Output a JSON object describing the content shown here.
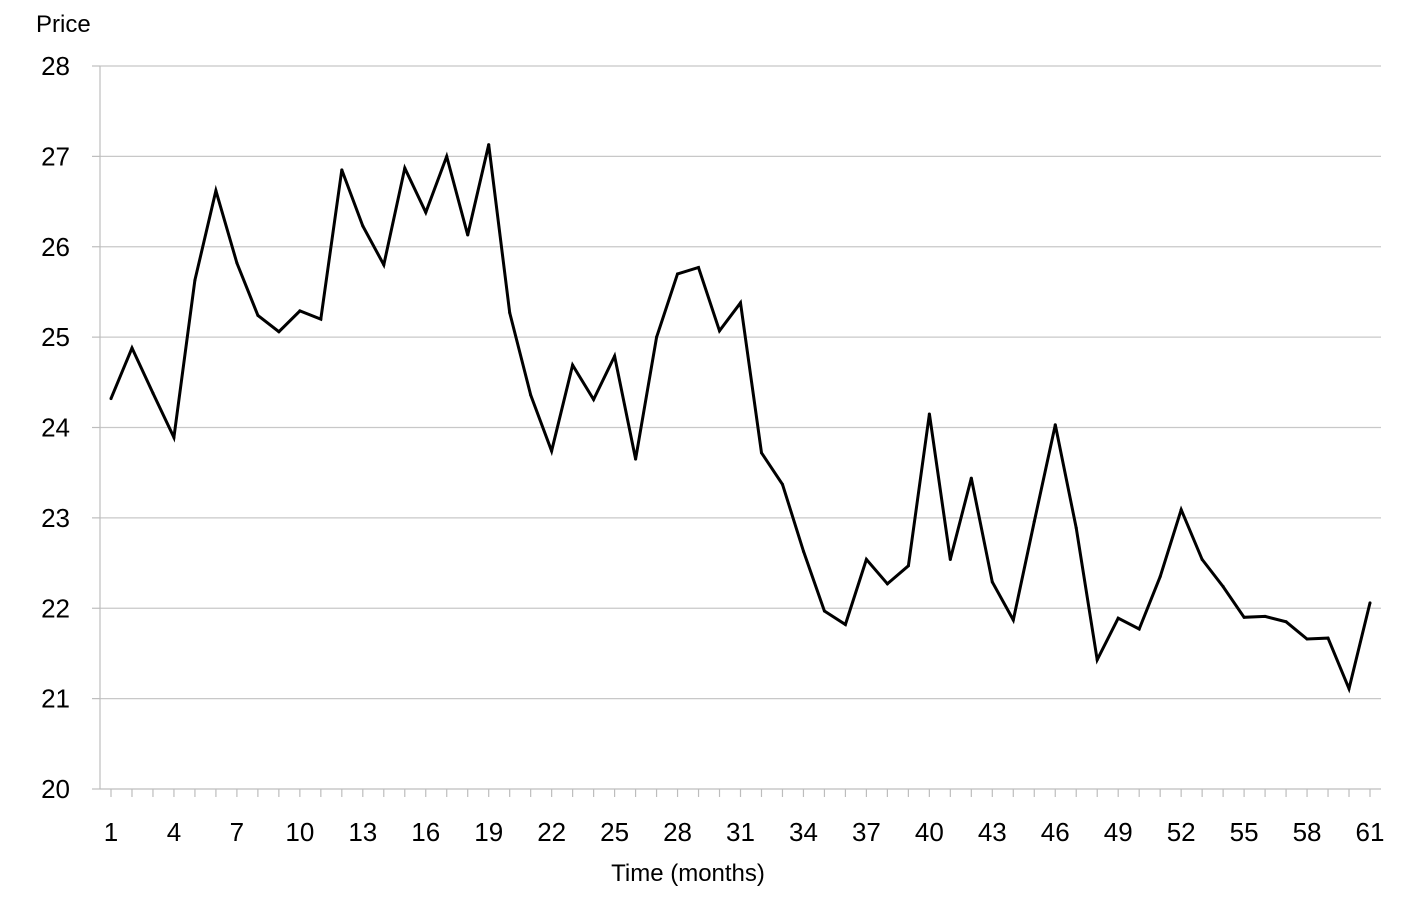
{
  "chart_data": {
    "type": "line",
    "title": "",
    "xlabel": "Time (months)",
    "ylabel": "Price",
    "xlim": [
      1,
      61
    ],
    "ylim": [
      20,
      28
    ],
    "y_ticks": [
      20,
      21,
      22,
      23,
      24,
      25,
      26,
      27,
      28
    ],
    "x_ticks": [
      1,
      4,
      7,
      10,
      13,
      16,
      19,
      22,
      25,
      28,
      31,
      34,
      37,
      40,
      43,
      46,
      49,
      52,
      55,
      58,
      61
    ],
    "y_tick_labels": [
      "20",
      "21",
      "22",
      "23",
      "24",
      "25",
      "26",
      "27",
      "28"
    ],
    "x_tick_labels": [
      "1",
      "4",
      "7",
      "10",
      "13",
      "16",
      "19",
      "22",
      "25",
      "28",
      "31",
      "34",
      "37",
      "40",
      "43",
      "46",
      "49",
      "52",
      "55",
      "58",
      "61"
    ],
    "grid": "horizontal",
    "line_color": "#000000",
    "grid_color": "#c8c8c8",
    "axis_color": "#bdbdbd",
    "x": [
      1,
      2,
      3,
      4,
      5,
      6,
      7,
      8,
      9,
      10,
      11,
      12,
      13,
      14,
      15,
      16,
      17,
      18,
      19,
      20,
      21,
      22,
      23,
      24,
      25,
      26,
      27,
      28,
      29,
      30,
      31,
      32,
      33,
      34,
      35,
      36,
      37,
      38,
      39,
      40,
      41,
      42,
      43,
      44,
      45,
      46,
      47,
      48,
      49,
      50,
      51,
      52,
      53,
      54,
      55,
      56,
      57,
      58,
      59,
      60,
      61
    ],
    "series": [
      {
        "values": [
          24.32,
          24.88,
          24.38,
          23.89,
          25.63,
          26.62,
          25.82,
          25.24,
          25.06,
          25.29,
          25.2,
          26.85,
          26.23,
          25.8,
          26.87,
          26.38,
          27.0,
          26.13,
          27.13,
          25.27,
          24.36,
          23.74,
          24.69,
          24.31,
          24.79,
          23.65,
          25.0,
          25.7,
          25.77,
          25.07,
          25.38,
          23.72,
          23.37,
          22.63,
          21.97,
          21.82,
          22.54,
          22.27,
          22.47,
          24.15,
          22.54,
          23.44,
          22.29,
          21.87,
          22.96,
          24.03,
          22.89,
          21.43,
          21.89,
          21.77,
          22.35,
          23.09,
          22.54,
          22.24,
          21.9,
          21.91,
          21.85,
          21.66,
          21.67,
          21.11,
          22.06
        ]
      }
    ]
  }
}
